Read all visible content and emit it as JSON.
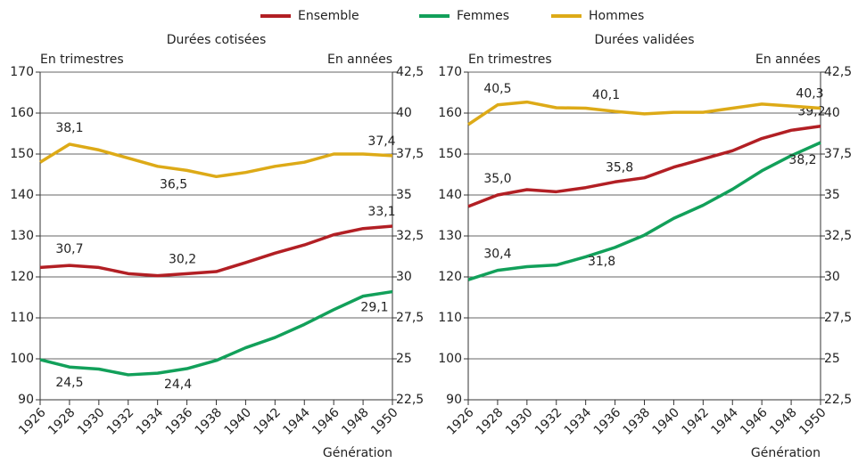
{
  "legend_chart": 0,
  "chart_data": [
    {
      "type": "line",
      "title": "Durées cotisées",
      "ylabel": "En trimestres",
      "y2label": "En années",
      "xlabel": "Génération",
      "x": [
        1926,
        1928,
        1930,
        1932,
        1934,
        1936,
        1938,
        1940,
        1942,
        1944,
        1946,
        1948,
        1950
      ],
      "xlim": [
        1926,
        1950
      ],
      "xticks": [
        1926,
        1928,
        1930,
        1932,
        1934,
        1936,
        1938,
        1940,
        1942,
        1944,
        1946,
        1948,
        1950
      ],
      "ylim": [
        90,
        170
      ],
      "yticks": [
        90,
        100,
        110,
        120,
        130,
        140,
        150,
        160,
        170
      ],
      "y2lim": [
        22.5,
        42.5
      ],
      "y2ticks": [
        {
          "value": 22.5,
          "label": "22,5"
        },
        25,
        {
          "value": 27.5,
          "label": "27,5"
        },
        30,
        {
          "value": 32.5,
          "label": "32,5"
        },
        35,
        {
          "value": 37.5,
          "label": "37,5"
        },
        40,
        {
          "value": 42.5,
          "label": "42,5"
        }
      ],
      "grid": true,
      "series": [
        {
          "name": "Ensemble",
          "color": "#b21f24",
          "values": [
            122.3,
            122.8,
            122.3,
            120.8,
            120.3,
            120.8,
            121.3,
            123.5,
            125.8,
            127.8,
            130.3,
            131.8,
            132.4
          ],
          "value_labels": [
            null,
            "30,7",
            null,
            null,
            null,
            "30,2",
            null,
            null,
            null,
            null,
            null,
            null,
            "33,1"
          ]
        },
        {
          "name": "Femmes",
          "color": "#12a05a",
          "values": [
            99.8,
            98.0,
            97.5,
            96.1,
            96.5,
            97.6,
            99.6,
            102.7,
            105.2,
            108.4,
            112.0,
            115.3,
            116.4
          ],
          "value_labels": [
            null,
            "24,5",
            null,
            null,
            null,
            "24,4",
            null,
            null,
            null,
            null,
            null,
            null,
            "29,1"
          ]
        },
        {
          "name": "Hommes",
          "color": "#ddaa17",
          "values": [
            148.0,
            152.4,
            151.0,
            149.0,
            147.0,
            146.0,
            144.5,
            145.5,
            147.0,
            148.0,
            150.0,
            150.0,
            149.6
          ],
          "value_labels": [
            null,
            "38,1",
            null,
            null,
            null,
            "36,5",
            null,
            null,
            null,
            null,
            null,
            null,
            "37,4"
          ]
        }
      ]
    },
    {
      "type": "line",
      "title": "Durées validées",
      "ylabel": "En trimestres",
      "y2label": "En années",
      "xlabel": "Génération",
      "x": [
        1926,
        1928,
        1930,
        1932,
        1934,
        1936,
        1938,
        1940,
        1942,
        1944,
        1946,
        1948,
        1950
      ],
      "xlim": [
        1926,
        1950
      ],
      "xticks": [
        1926,
        1928,
        1930,
        1932,
        1934,
        1936,
        1938,
        1940,
        1942,
        1944,
        1946,
        1948,
        1950
      ],
      "ylim": [
        90,
        170
      ],
      "yticks": [
        90,
        100,
        110,
        120,
        130,
        140,
        150,
        160,
        170
      ],
      "y2lim": [
        22.5,
        42.5
      ],
      "y2ticks": [
        {
          "value": 22.5,
          "label": "22,5"
        },
        25,
        {
          "value": 27.5,
          "label": "27,5"
        },
        30,
        {
          "value": 32.5,
          "label": "32,5"
        },
        35,
        {
          "value": 37.5,
          "label": "37,5"
        },
        40,
        {
          "value": 42.5,
          "label": "42,5"
        }
      ],
      "grid": true,
      "series": [
        {
          "color": "#b21f24",
          "values": [
            137.2,
            140.0,
            141.3,
            140.8,
            141.8,
            143.2,
            144.2,
            146.8,
            148.8,
            150.8,
            153.8,
            155.8,
            156.8
          ],
          "value_labels": [
            null,
            "35,0",
            null,
            null,
            null,
            "35,8",
            null,
            null,
            null,
            null,
            null,
            null,
            "39,2"
          ]
        },
        {
          "color": "#12a05a",
          "values": [
            119.3,
            121.6,
            122.5,
            122.9,
            124.9,
            127.2,
            130.2,
            134.3,
            137.5,
            141.4,
            145.9,
            149.6,
            152.8
          ],
          "value_labels": [
            null,
            "30,4",
            null,
            null,
            null,
            "31,8",
            null,
            null,
            null,
            null,
            null,
            null,
            "38,2"
          ]
        },
        {
          "color": "#ddaa17",
          "values": [
            157.2,
            162.0,
            162.7,
            161.3,
            161.2,
            160.4,
            159.8,
            160.2,
            160.2,
            161.2,
            162.2,
            161.7,
            161.2
          ],
          "value_labels": [
            null,
            "40,5",
            null,
            null,
            null,
            "40,1",
            null,
            null,
            null,
            null,
            null,
            null,
            "40,3"
          ]
        }
      ]
    }
  ]
}
